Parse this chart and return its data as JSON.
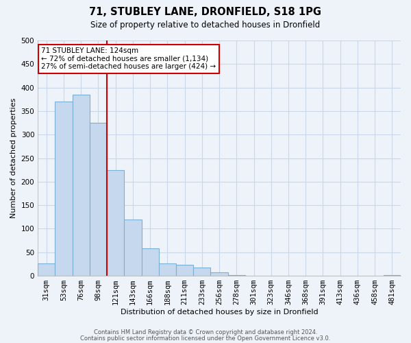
{
  "title": "71, STUBLEY LANE, DRONFIELD, S18 1PG",
  "subtitle": "Size of property relative to detached houses in Dronfield",
  "xlabel": "Distribution of detached houses by size in Dronfield",
  "ylabel": "Number of detached properties",
  "bar_labels": [
    "31sqm",
    "53sqm",
    "76sqm",
    "98sqm",
    "121sqm",
    "143sqm",
    "166sqm",
    "188sqm",
    "211sqm",
    "233sqm",
    "256sqm",
    "278sqm",
    "301sqm",
    "323sqm",
    "346sqm",
    "368sqm",
    "391sqm",
    "413sqm",
    "436sqm",
    "458sqm",
    "481sqm"
  ],
  "bar_values": [
    27,
    370,
    385,
    325,
    225,
    120,
    58,
    27,
    23,
    17,
    7,
    2,
    0,
    0,
    0,
    0,
    0,
    0,
    0,
    0,
    2
  ],
  "bar_color": "#c5d8ed",
  "bar_edge_color": "#7bafd4",
  "property_line_color": "#cc0000",
  "ylim": [
    0,
    500
  ],
  "yticks": [
    0,
    50,
    100,
    150,
    200,
    250,
    300,
    350,
    400,
    450,
    500
  ],
  "ann_line1": "71 STUBLEY LANE: 124sqm",
  "ann_line2": "← 72% of detached houses are smaller (1,134)",
  "ann_line3": "27% of semi-detached houses are larger (424) →",
  "annotation_box_facecolor": "white",
  "annotation_box_edgecolor": "#cc0000",
  "footnote1": "Contains HM Land Registry data © Crown copyright and database right 2024.",
  "footnote2": "Contains public sector information licensed under the Open Government Licence v3.0.",
  "grid_color": "#c8d8e8",
  "background_color": "#eef3f9",
  "title_fontsize": 10.5,
  "subtitle_fontsize": 8.5,
  "axis_label_fontsize": 8,
  "tick_fontsize": 7.5,
  "footnote_fontsize": 6
}
